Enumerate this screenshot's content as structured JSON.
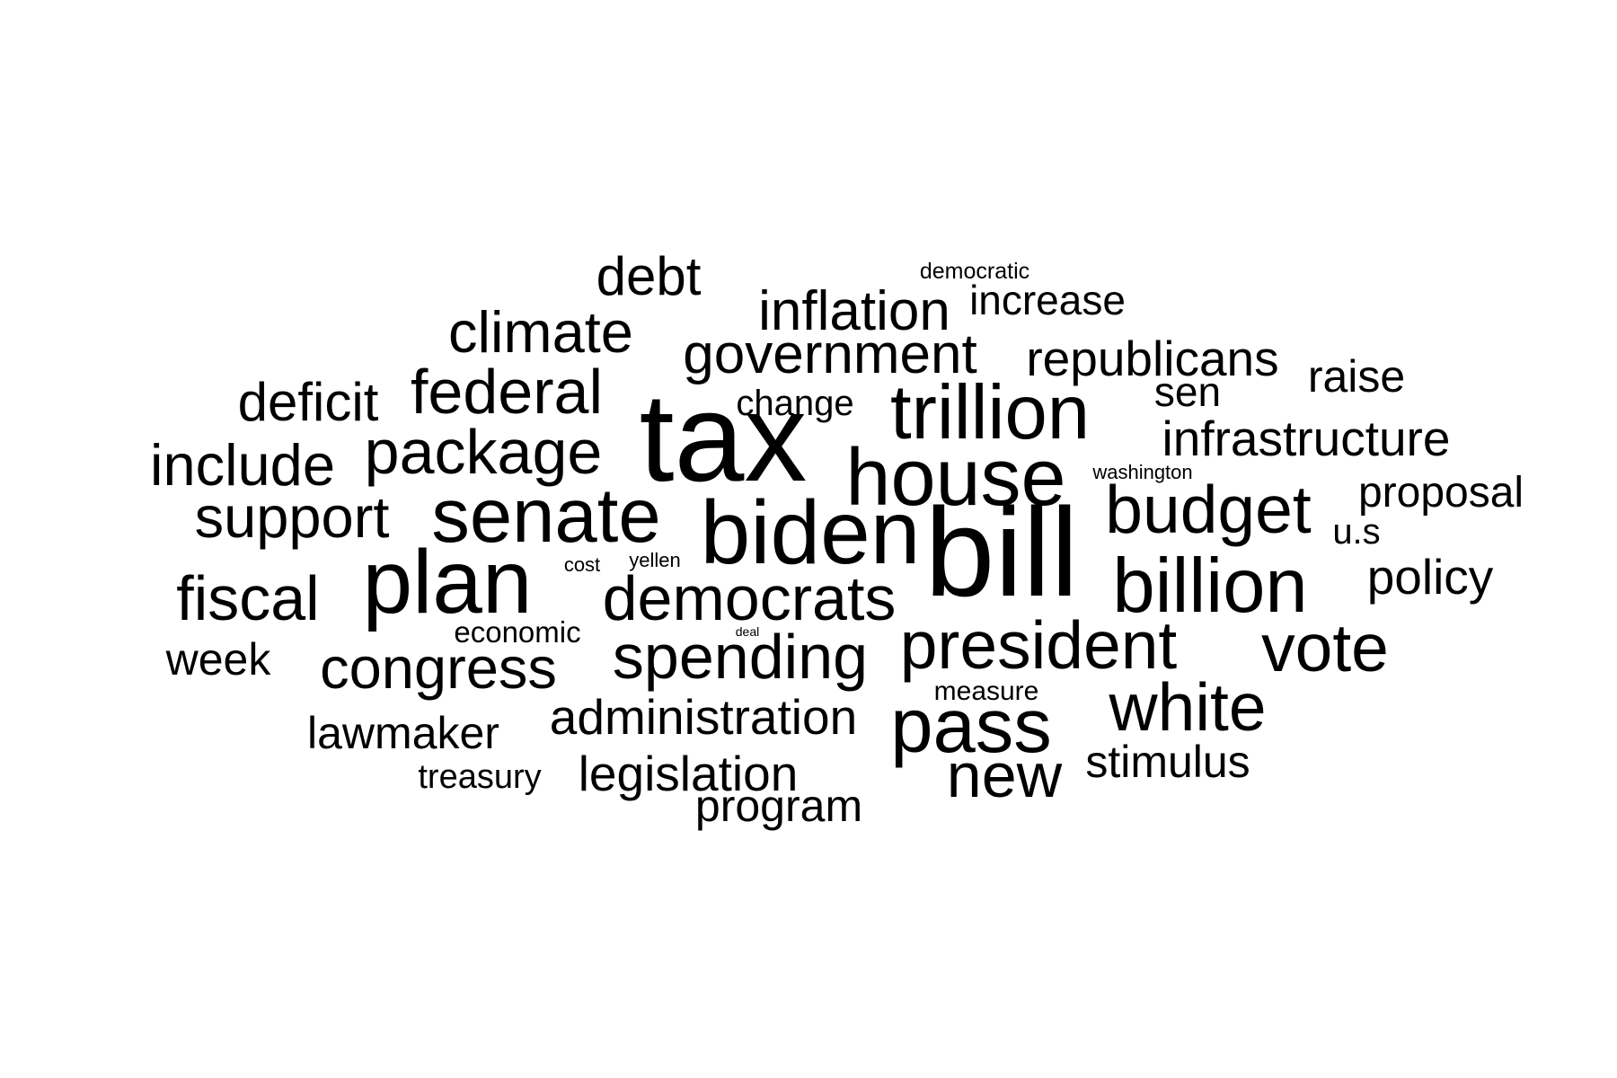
{
  "word_cloud": {
    "text_color": "#000000",
    "background_color": "#ffffff",
    "words": [
      {
        "text": "tax"
      },
      {
        "text": "bill"
      },
      {
        "text": "biden"
      },
      {
        "text": "plan"
      },
      {
        "text": "house"
      },
      {
        "text": "senate"
      },
      {
        "text": "trillion"
      },
      {
        "text": "pass"
      },
      {
        "text": "billion"
      },
      {
        "text": "democrats"
      },
      {
        "text": "president"
      },
      {
        "text": "budget"
      },
      {
        "text": "white"
      },
      {
        "text": "package"
      },
      {
        "text": "spending"
      },
      {
        "text": "federal"
      },
      {
        "text": "vote"
      },
      {
        "text": "new"
      },
      {
        "text": "fiscal"
      },
      {
        "text": "congress"
      },
      {
        "text": "government"
      },
      {
        "text": "support"
      },
      {
        "text": "climate"
      },
      {
        "text": "inflation"
      },
      {
        "text": "include"
      },
      {
        "text": "republicans"
      },
      {
        "text": "deficit"
      },
      {
        "text": "debt"
      },
      {
        "text": "infrastructure"
      },
      {
        "text": "administration"
      },
      {
        "text": "legislation"
      },
      {
        "text": "policy"
      },
      {
        "text": "program"
      },
      {
        "text": "lawmaker"
      },
      {
        "text": "week"
      },
      {
        "text": "raise"
      },
      {
        "text": "stimulus"
      },
      {
        "text": "proposal"
      },
      {
        "text": "increase"
      },
      {
        "text": "sen"
      },
      {
        "text": "change"
      },
      {
        "text": "u.s"
      },
      {
        "text": "treasury"
      },
      {
        "text": "economic"
      },
      {
        "text": "measure"
      },
      {
        "text": "democratic"
      },
      {
        "text": "washington"
      },
      {
        "text": "yellen"
      },
      {
        "text": "cost"
      },
      {
        "text": "deal"
      }
    ]
  }
}
